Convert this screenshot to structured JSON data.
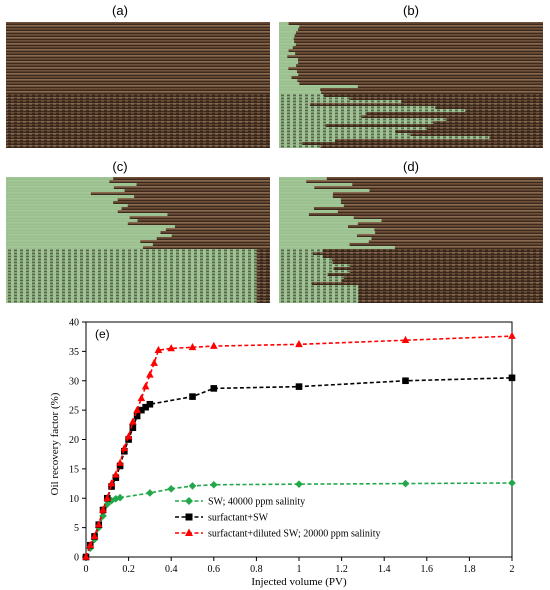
{
  "panels": [
    {
      "id": "a",
      "label": "(a)"
    },
    {
      "id": "b",
      "label": "(b)"
    },
    {
      "id": "c",
      "label": "(c)"
    },
    {
      "id": "d",
      "label": "(d)"
    }
  ],
  "chart_panel_label": "(e)",
  "chart_data": {
    "type": "line",
    "title": "",
    "xlabel": "Injected volume (PV)",
    "ylabel": "Oil recovery factor (%)",
    "xlim": [
      0,
      2
    ],
    "ylim": [
      0,
      40
    ],
    "xticks": [
      "0",
      "0.2",
      "0.4",
      "0.6",
      "0.8",
      "1",
      "1.2",
      "1.4",
      "1.6",
      "1.8",
      "2"
    ],
    "yticks": [
      "0",
      "5",
      "10",
      "15",
      "20",
      "25",
      "30",
      "35",
      "40"
    ],
    "grid": false,
    "legend_position": "bottom-center",
    "series": [
      {
        "name": "SW; 40000 ppm salinity",
        "color": "#22a84a",
        "marker": "diamond",
        "points": [
          [
            0,
            0
          ],
          [
            0.02,
            1.5
          ],
          [
            0.04,
            3
          ],
          [
            0.06,
            5
          ],
          [
            0.08,
            7
          ],
          [
            0.1,
            9
          ],
          [
            0.12,
            9.6
          ],
          [
            0.14,
            9.9
          ],
          [
            0.16,
            10.1
          ],
          [
            0.3,
            10.9
          ],
          [
            0.4,
            11.6
          ],
          [
            0.5,
            12.1
          ],
          [
            0.6,
            12.3
          ],
          [
            1.0,
            12.4
          ],
          [
            1.5,
            12.5
          ],
          [
            2.0,
            12.6
          ]
        ]
      },
      {
        "name": "surfactant+SW",
        "color": "#000000",
        "marker": "square",
        "points": [
          [
            0,
            0
          ],
          [
            0.02,
            2
          ],
          [
            0.04,
            3.5
          ],
          [
            0.06,
            5.5
          ],
          [
            0.08,
            8
          ],
          [
            0.1,
            10
          ],
          [
            0.12,
            12
          ],
          [
            0.14,
            13.5
          ],
          [
            0.16,
            15.5
          ],
          [
            0.18,
            18
          ],
          [
            0.2,
            20
          ],
          [
            0.22,
            22
          ],
          [
            0.24,
            24
          ],
          [
            0.26,
            25
          ],
          [
            0.28,
            25.5
          ],
          [
            0.3,
            26
          ],
          [
            0.5,
            27.3
          ],
          [
            0.6,
            28.7
          ],
          [
            1.0,
            29
          ],
          [
            1.5,
            30
          ],
          [
            2.0,
            30.5
          ]
        ]
      },
      {
        "name": "surfactant+diluted SW; 20000 ppm salinity",
        "color": "#ff0000",
        "marker": "triangle",
        "points": [
          [
            0,
            0
          ],
          [
            0.02,
            2
          ],
          [
            0.04,
            3.5
          ],
          [
            0.06,
            5.5
          ],
          [
            0.08,
            8
          ],
          [
            0.1,
            10
          ],
          [
            0.12,
            12.5
          ],
          [
            0.14,
            14
          ],
          [
            0.16,
            16
          ],
          [
            0.18,
            18.5
          ],
          [
            0.2,
            20.5
          ],
          [
            0.22,
            23
          ],
          [
            0.24,
            25
          ],
          [
            0.26,
            27
          ],
          [
            0.28,
            29
          ],
          [
            0.3,
            31
          ],
          [
            0.32,
            33
          ],
          [
            0.34,
            35.2
          ],
          [
            0.4,
            35.5
          ],
          [
            0.5,
            35.7
          ],
          [
            0.6,
            35.9
          ],
          [
            1.0,
            36.2
          ],
          [
            1.5,
            36.9
          ],
          [
            2.0,
            37.6
          ]
        ]
      }
    ]
  }
}
